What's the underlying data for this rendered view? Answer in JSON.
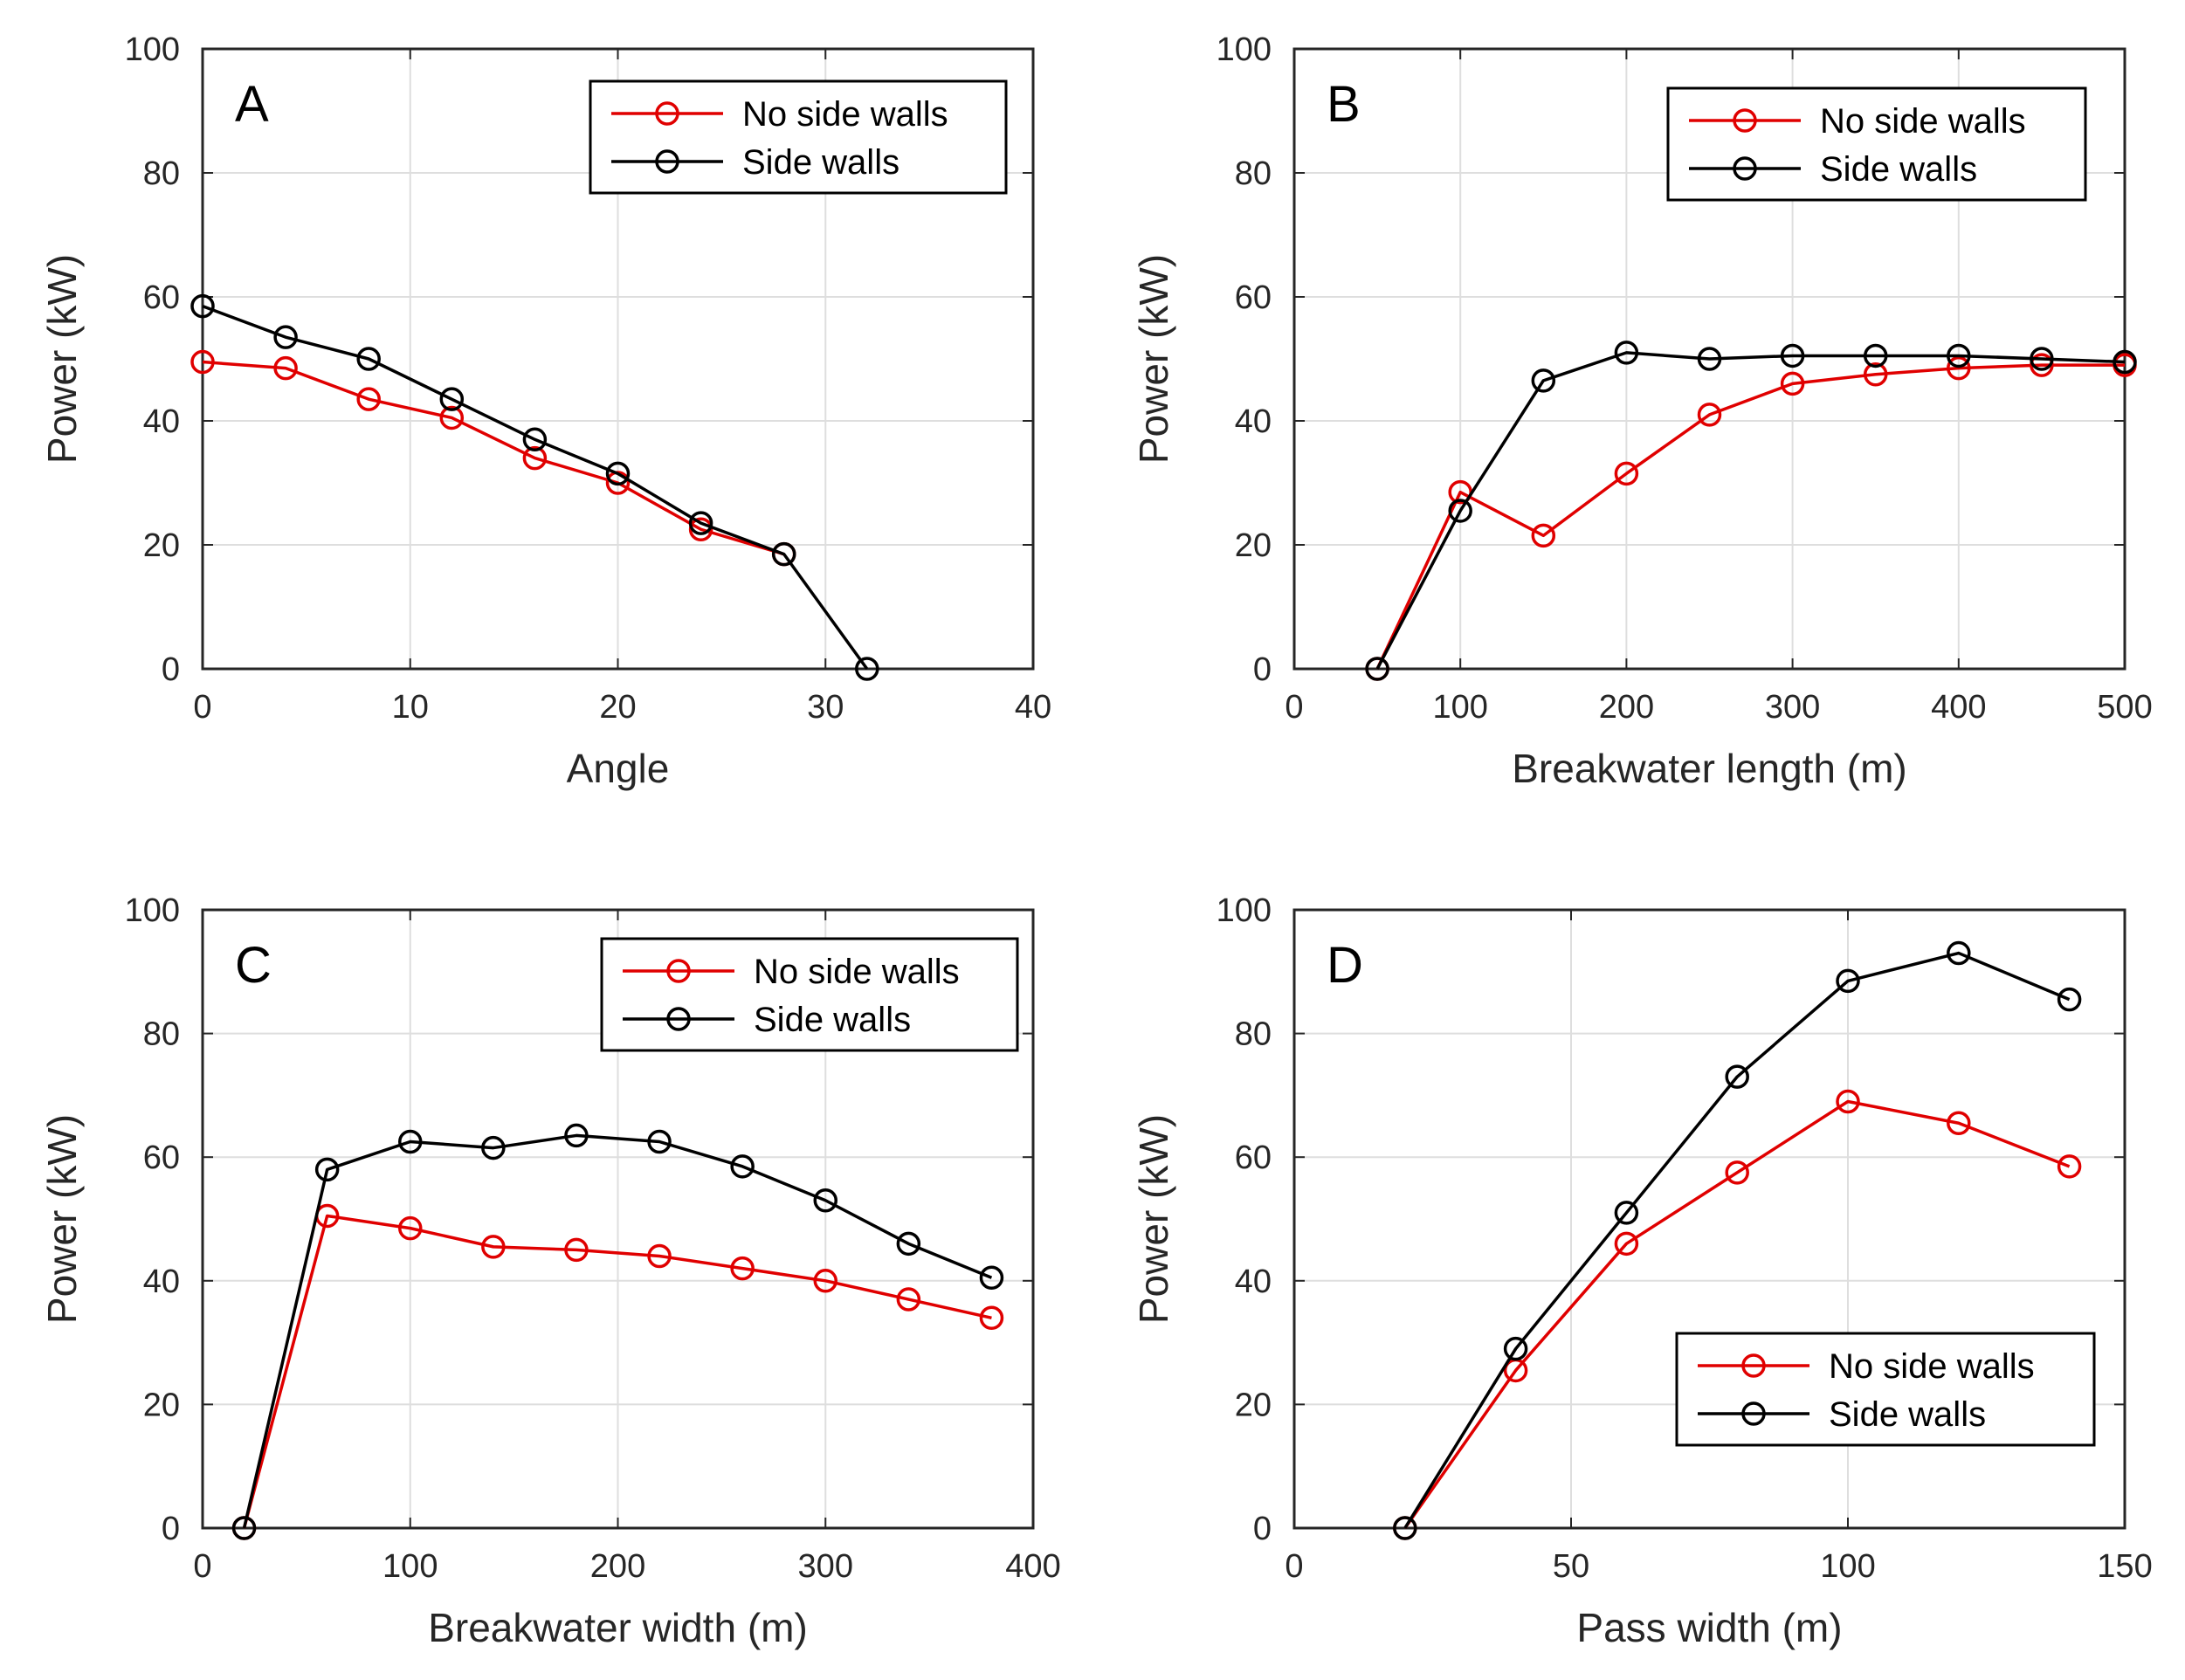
{
  "chart_data": [
    {
      "type": "line",
      "panel_label": "A",
      "xlabel": "Angle",
      "ylabel": "Power (kW)",
      "xlim": [
        0,
        40
      ],
      "ylim": [
        0,
        100
      ],
      "xticks": [
        0,
        10,
        20,
        30,
        40
      ],
      "yticks": [
        0,
        20,
        40,
        60,
        80,
        100
      ],
      "grid": true,
      "legend_position": "top-right",
      "series": [
        {
          "name": "No side walls",
          "color": "#e00000",
          "marker": "circle",
          "x": [
            0,
            4,
            8,
            12,
            16,
            20,
            24,
            28
          ],
          "y": [
            49.5,
            48.5,
            43.5,
            40.5,
            34,
            30,
            22.5,
            18.5
          ]
        },
        {
          "name": "Side walls",
          "color": "#000000",
          "marker": "circle",
          "x": [
            0,
            4,
            8,
            12,
            16,
            20,
            24,
            28,
            32
          ],
          "y": [
            58.5,
            53.5,
            50,
            43.5,
            37,
            31.5,
            23.5,
            18.5,
            0
          ]
        }
      ]
    },
    {
      "type": "line",
      "panel_label": "B",
      "xlabel": "Breakwater length (m)",
      "ylabel": "Power (kW)",
      "xlim": [
        0,
        500
      ],
      "ylim": [
        0,
        100
      ],
      "xticks": [
        0,
        100,
        200,
        300,
        400,
        500
      ],
      "yticks": [
        0,
        20,
        40,
        60,
        80,
        100
      ],
      "grid": true,
      "legend_position": "top-right",
      "series": [
        {
          "name": "No side walls",
          "color": "#e00000",
          "marker": "circle",
          "x": [
            50,
            100,
            150,
            200,
            250,
            300,
            350,
            400,
            450,
            500
          ],
          "y": [
            0,
            28.5,
            21.5,
            31.5,
            41,
            46,
            47.5,
            48.5,
            49,
            49
          ]
        },
        {
          "name": "Side walls",
          "color": "#000000",
          "marker": "circle",
          "x": [
            50,
            100,
            150,
            200,
            250,
            300,
            350,
            400,
            450,
            500
          ],
          "y": [
            0,
            25.5,
            46.5,
            51,
            50,
            50.5,
            50.5,
            50.5,
            50,
            49.5
          ]
        }
      ]
    },
    {
      "type": "line",
      "panel_label": "C",
      "xlabel": "Breakwater width (m)",
      "ylabel": "Power (kW)",
      "xlim": [
        0,
        400
      ],
      "ylim": [
        0,
        100
      ],
      "xticks": [
        0,
        100,
        200,
        300,
        400
      ],
      "yticks": [
        0,
        20,
        40,
        60,
        80,
        100
      ],
      "grid": true,
      "legend_position": "top-right",
      "series": [
        {
          "name": "No side walls",
          "color": "#e00000",
          "marker": "circle",
          "x": [
            20,
            60,
            100,
            140,
            180,
            220,
            260,
            300,
            340,
            380
          ],
          "y": [
            0,
            50.5,
            48.5,
            45.5,
            45,
            44,
            42,
            40,
            37,
            34
          ]
        },
        {
          "name": "Side walls",
          "color": "#000000",
          "marker": "circle",
          "x": [
            20,
            60,
            100,
            140,
            180,
            220,
            260,
            300,
            340,
            380
          ],
          "y": [
            0,
            58,
            62.5,
            61.5,
            63.5,
            62.5,
            58.5,
            53,
            46,
            40.5
          ]
        }
      ]
    },
    {
      "type": "line",
      "panel_label": "D",
      "xlabel": "Pass width (m)",
      "ylabel": "Power (kW)",
      "xlim": [
        0,
        150
      ],
      "ylim": [
        0,
        100
      ],
      "xticks": [
        0,
        50,
        100,
        150
      ],
      "yticks": [
        0,
        20,
        40,
        60,
        80,
        100
      ],
      "grid": true,
      "legend_position": "bottom-right",
      "series": [
        {
          "name": "No side walls",
          "color": "#e00000",
          "marker": "circle",
          "x": [
            20,
            40,
            60,
            80,
            100,
            120,
            140
          ],
          "y": [
            0,
            25.5,
            46,
            57.5,
            69,
            65.5,
            58.5
          ]
        },
        {
          "name": "Side walls",
          "color": "#000000",
          "marker": "circle",
          "x": [
            20,
            40,
            60,
            80,
            100,
            120,
            140
          ],
          "y": [
            0,
            29,
            51,
            73,
            88.5,
            93,
            85.5
          ]
        }
      ]
    }
  ]
}
